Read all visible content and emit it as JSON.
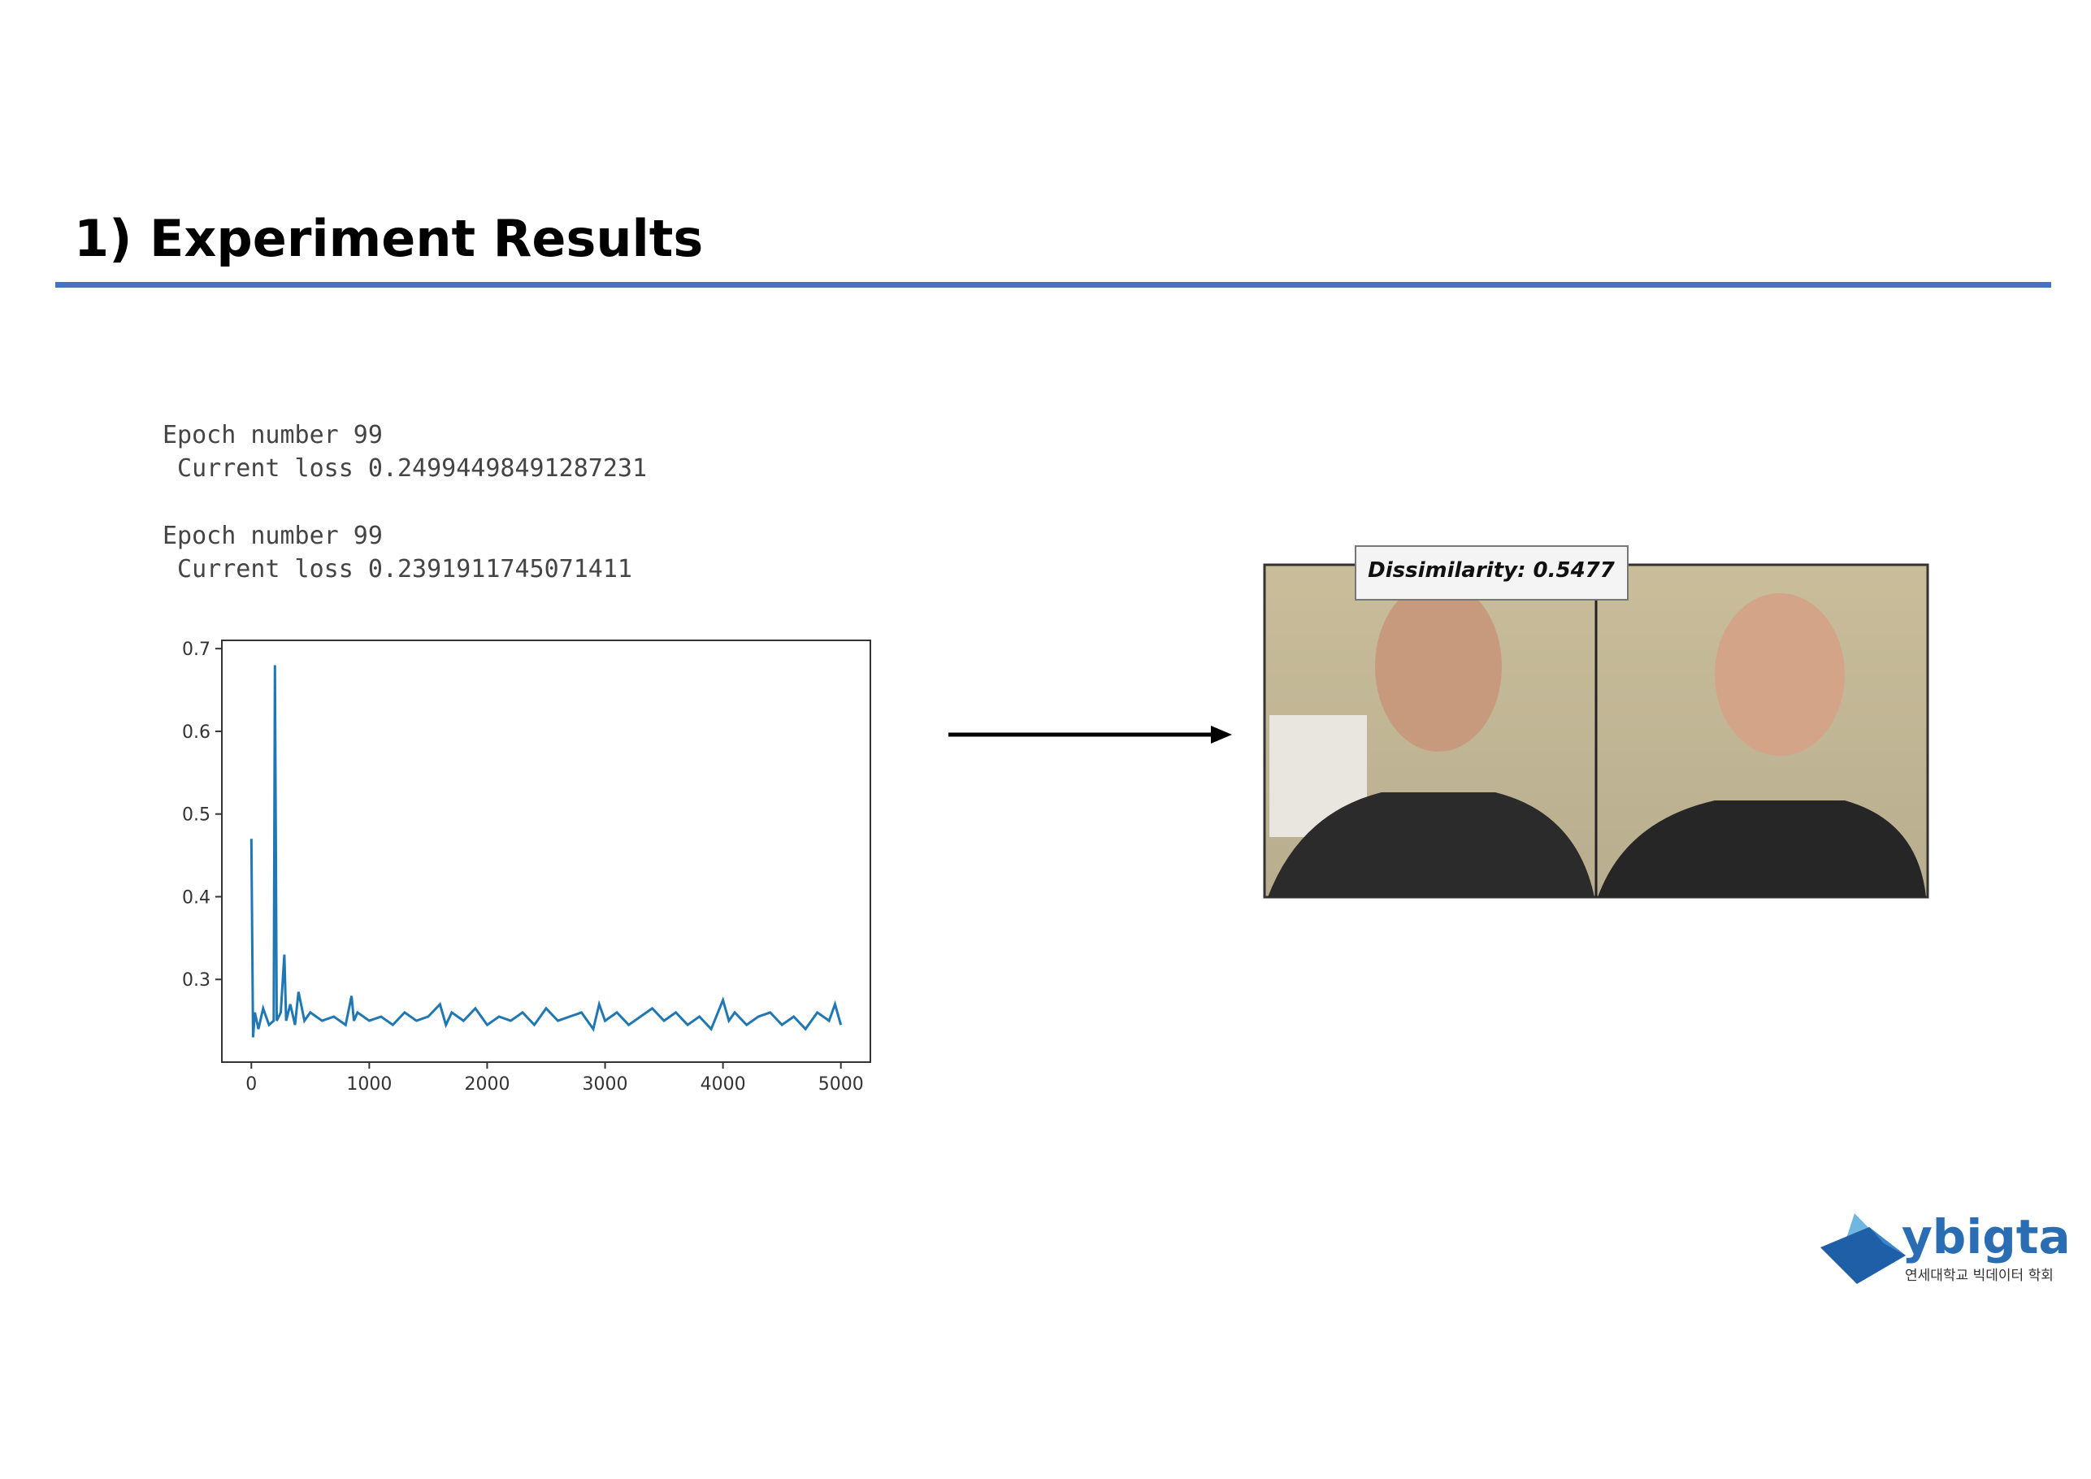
{
  "header": {
    "title": "1) Experiment Results"
  },
  "log": [
    "Epoch number 99",
    " Current loss 0.24994498491287231",
    "Epoch number 99",
    " Current loss 0.2391911745071411"
  ],
  "chart_data": {
    "type": "line",
    "x": [
      0,
      15,
      30,
      60,
      100,
      150,
      190,
      200,
      215,
      250,
      280,
      295,
      330,
      370,
      400,
      450,
      500,
      600,
      700,
      800,
      850,
      870,
      900,
      1000,
      1100,
      1200,
      1300,
      1400,
      1500,
      1600,
      1650,
      1700,
      1800,
      1900,
      2000,
      2100,
      2200,
      2300,
      2400,
      2500,
      2600,
      2700,
      2800,
      2900,
      2950,
      3000,
      3100,
      3200,
      3300,
      3400,
      3500,
      3600,
      3700,
      3800,
      3900,
      4000,
      4050,
      4100,
      4200,
      4300,
      4400,
      4500,
      4600,
      4700,
      4800,
      4900,
      4950,
      5000
    ],
    "values": [
      0.47,
      0.23,
      0.26,
      0.24,
      0.265,
      0.245,
      0.25,
      0.68,
      0.25,
      0.26,
      0.33,
      0.25,
      0.27,
      0.245,
      0.285,
      0.25,
      0.26,
      0.25,
      0.255,
      0.245,
      0.28,
      0.25,
      0.26,
      0.25,
      0.255,
      0.245,
      0.26,
      0.25,
      0.255,
      0.27,
      0.245,
      0.26,
      0.25,
      0.265,
      0.245,
      0.255,
      0.25,
      0.26,
      0.245,
      0.265,
      0.25,
      0.255,
      0.26,
      0.24,
      0.27,
      0.25,
      0.26,
      0.245,
      0.255,
      0.265,
      0.25,
      0.26,
      0.245,
      0.255,
      0.24,
      0.275,
      0.25,
      0.26,
      0.245,
      0.255,
      0.26,
      0.245,
      0.255,
      0.24,
      0.26,
      0.25,
      0.27,
      0.245
    ],
    "color": "#1f77b4",
    "xlim": [
      -250,
      5250
    ],
    "xticks": [
      0,
      1000,
      2000,
      3000,
      4000,
      5000
    ],
    "ylim": [
      0.2,
      0.71
    ],
    "yticks": [
      0.3,
      0.4,
      0.5,
      0.6,
      0.7
    ],
    "grid": false
  },
  "image": {
    "label": "Dissimilarity: 0.5477"
  },
  "logo": {
    "name": "ybigta",
    "subtitle": "연세대학교 빅데이터 학회"
  }
}
